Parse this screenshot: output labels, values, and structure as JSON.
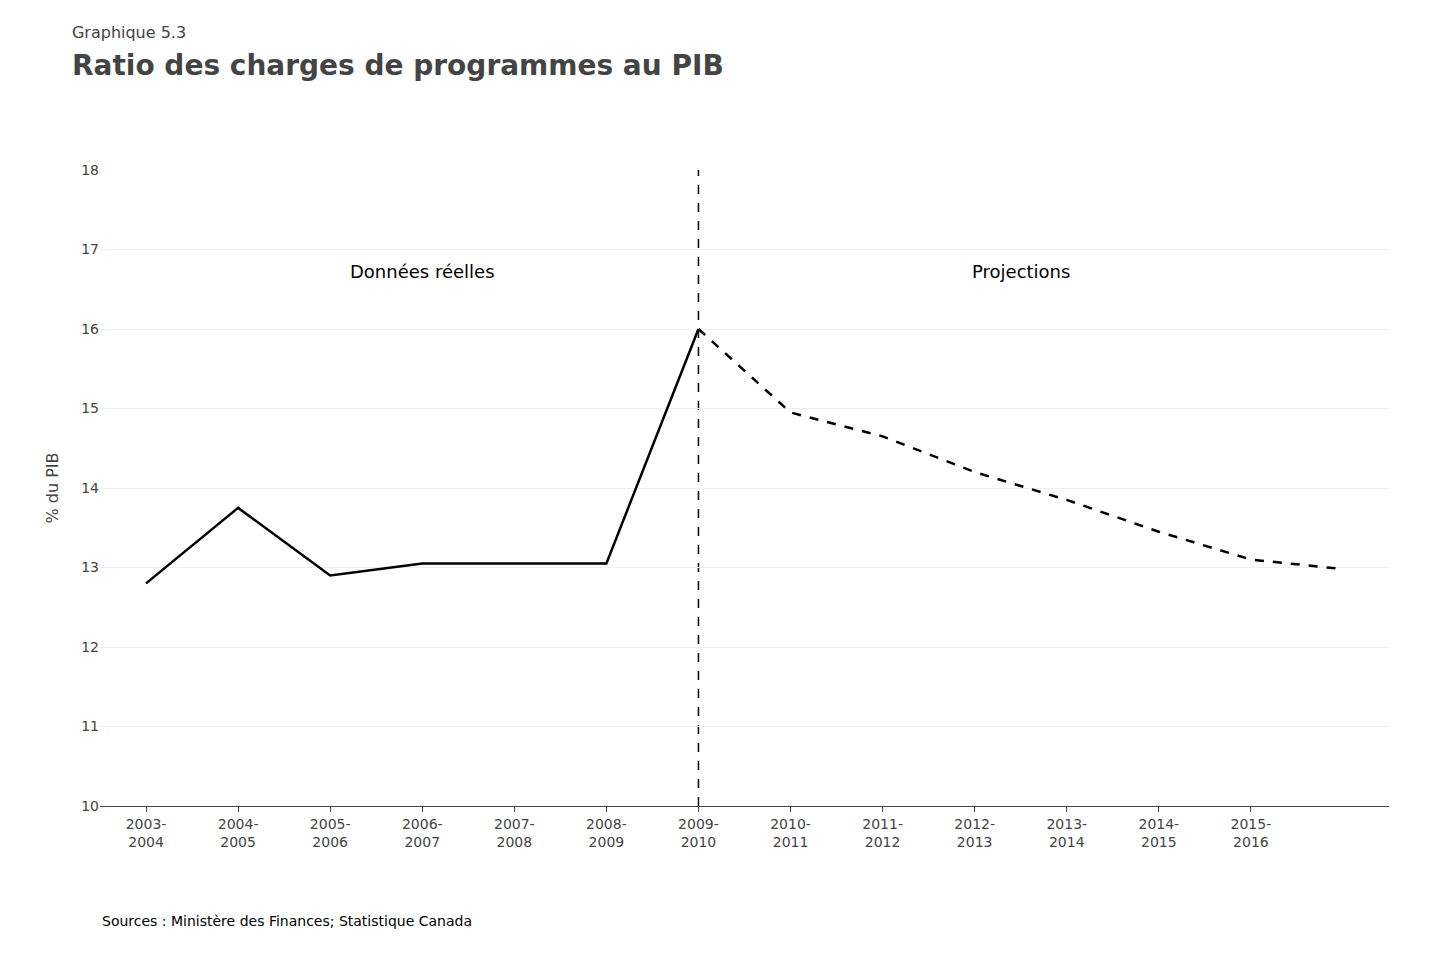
{
  "chart_data": {
    "type": "line",
    "subtitle": "Graphique 5.3",
    "title": "Ratio des charges de programmes au PIB",
    "y_label": "% du PIB",
    "source": "Sources : Ministère des Finances; Statistique Canada",
    "categories": [
      "2003-\n2004",
      "2004-\n2005",
      "2005-\n2006",
      "2006-\n2007",
      "2007-\n2008",
      "2008-\n2009",
      "2009-\n2010",
      "2010-\n2011",
      "2011-\n2012",
      "2012-\n2013",
      "2013-\n2014",
      "2014-\n2015",
      "2015-\n2016",
      null
    ],
    "series": [
      {
        "color": "#000000",
        "line_style": "solid",
        "values": [
          12.8,
          13.75,
          12.9,
          13.05,
          13.05,
          13.05,
          16.0,
          null,
          null,
          null,
          null,
          null,
          null,
          null
        ]
      },
      {
        "color": "#000000",
        "line_style": "dashed",
        "values": [
          null,
          null,
          null,
          null,
          null,
          null,
          16.0,
          14.95,
          14.65,
          14.2,
          13.85,
          13.45,
          13.1,
          12.98
        ]
      }
    ],
    "annotations": [
      "Données réelles",
      "Projections"
    ],
    "ylim": [
      10,
      18
    ],
    "yticks": [
      10,
      11,
      12,
      13,
      14,
      15,
      16,
      17,
      18
    ],
    "grid": true
  }
}
